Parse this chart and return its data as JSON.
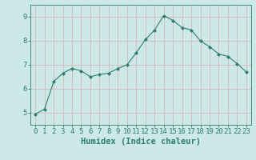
{
  "x": [
    0,
    1,
    2,
    3,
    4,
    5,
    6,
    7,
    8,
    9,
    10,
    11,
    12,
    13,
    14,
    15,
    16,
    17,
    18,
    19,
    20,
    21,
    22,
    23
  ],
  "y": [
    4.95,
    5.15,
    6.3,
    6.65,
    6.85,
    6.75,
    6.5,
    6.6,
    6.65,
    6.85,
    7.0,
    7.5,
    8.05,
    8.45,
    9.05,
    8.85,
    8.55,
    8.45,
    8.0,
    7.75,
    7.45,
    7.35,
    7.05,
    6.7
  ],
  "line_color": "#2e7d6e",
  "marker": "D",
  "marker_size": 2.0,
  "background_color": "#cce9e8",
  "grid_color": "#b8d4d3",
  "axis_color": "#2e7d6e",
  "xlabel": "Humidex (Indice chaleur)",
  "xlabel_fontsize": 7.5,
  "tick_fontsize": 6.5,
  "xlim": [
    -0.5,
    23.5
  ],
  "ylim": [
    4.5,
    9.5
  ],
  "yticks": [
    5,
    6,
    7,
    8,
    9
  ],
  "xticks": [
    0,
    1,
    2,
    3,
    4,
    5,
    6,
    7,
    8,
    9,
    10,
    11,
    12,
    13,
    14,
    15,
    16,
    17,
    18,
    19,
    20,
    21,
    22,
    23
  ]
}
